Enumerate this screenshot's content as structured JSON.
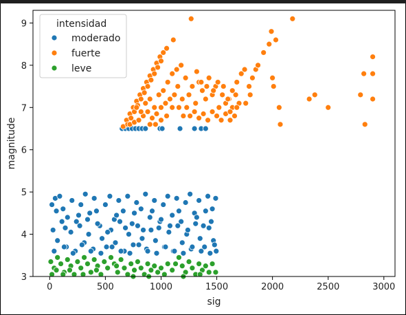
{
  "chart_data": {
    "type": "scatter",
    "xlabel": "sig",
    "ylabel": "magnitude",
    "xlim": [
      -150,
      3100
    ],
    "ylim": [
      3.0,
      9.3
    ],
    "xticks": [
      0,
      500,
      1000,
      1500,
      2000,
      2500,
      3000
    ],
    "yticks": [
      3,
      4,
      5,
      6,
      7,
      8,
      9
    ],
    "grid": false,
    "legend": {
      "title": "intensidad",
      "placement": "top-left",
      "entries": [
        "moderado",
        "fuerte",
        "leve"
      ]
    },
    "series": [
      {
        "name": "moderado",
        "color": "#1f77b4",
        "points": [
          [
            650,
            6.5
          ],
          [
            680,
            6.5
          ],
          [
            710,
            6.5
          ],
          [
            740,
            6.5
          ],
          [
            770,
            6.5
          ],
          [
            800,
            6.5
          ],
          [
            830,
            6.5
          ],
          [
            860,
            6.5
          ],
          [
            990,
            6.5
          ],
          [
            1010,
            6.5
          ],
          [
            1170,
            6.5
          ],
          [
            1300,
            6.5
          ],
          [
            1360,
            6.5
          ],
          [
            1400,
            6.5
          ],
          [
            20,
            4.7
          ],
          [
            50,
            4.85
          ],
          [
            90,
            4.9
          ],
          [
            120,
            4.6
          ],
          [
            160,
            4.4
          ],
          [
            200,
            4.8
          ],
          [
            240,
            4.3
          ],
          [
            280,
            4.7
          ],
          [
            320,
            4.95
          ],
          [
            360,
            4.5
          ],
          [
            400,
            4.85
          ],
          [
            450,
            4.2
          ],
          [
            500,
            4.7
          ],
          [
            540,
            4.9
          ],
          [
            580,
            4.35
          ],
          [
            620,
            4.8
          ],
          [
            660,
            4.55
          ],
          [
            700,
            4.9
          ],
          [
            740,
            4.25
          ],
          [
            780,
            4.75
          ],
          [
            820,
            4.6
          ],
          [
            860,
            4.95
          ],
          [
            900,
            4.4
          ],
          [
            940,
            4.8
          ],
          [
            980,
            4.15
          ],
          [
            1020,
            4.7
          ],
          [
            1060,
            4.9
          ],
          [
            1100,
            4.45
          ],
          [
            1140,
            4.85
          ],
          [
            1180,
            4.3
          ],
          [
            1220,
            4.75
          ],
          [
            1260,
            4.95
          ],
          [
            1300,
            4.5
          ],
          [
            1340,
            4.8
          ],
          [
            1380,
            4.2
          ],
          [
            1420,
            4.9
          ],
          [
            1460,
            4.6
          ],
          [
            1490,
            4.85
          ],
          [
            30,
            4.1
          ],
          [
            70,
            3.85
          ],
          [
            110,
            4.3
          ],
          [
            150,
            3.7
          ],
          [
            190,
            4.05
          ],
          [
            230,
            3.6
          ],
          [
            270,
            4.2
          ],
          [
            310,
            3.8
          ],
          [
            350,
            4.0
          ],
          [
            390,
            3.65
          ],
          [
            430,
            4.25
          ],
          [
            470,
            3.9
          ],
          [
            510,
            3.7
          ],
          [
            550,
            4.1
          ],
          [
            590,
            3.8
          ],
          [
            630,
            4.3
          ],
          [
            670,
            3.6
          ],
          [
            710,
            4.0
          ],
          [
            750,
            3.75
          ],
          [
            790,
            4.2
          ],
          [
            830,
            3.9
          ],
          [
            870,
            3.65
          ],
          [
            910,
            4.1
          ],
          [
            950,
            3.85
          ],
          [
            990,
            4.3
          ],
          [
            1030,
            3.7
          ],
          [
            1070,
            4.05
          ],
          [
            1110,
            3.6
          ],
          [
            1150,
            4.2
          ],
          [
            1190,
            3.8
          ],
          [
            1230,
            4.0
          ],
          [
            1270,
            3.65
          ],
          [
            1310,
            4.25
          ],
          [
            1350,
            3.9
          ],
          [
            1390,
            3.7
          ],
          [
            1430,
            4.15
          ],
          [
            1470,
            3.85
          ],
          [
            1495,
            3.6
          ],
          [
            40,
            3.6
          ],
          [
            130,
            3.7
          ],
          [
            210,
            3.55
          ],
          [
            290,
            3.75
          ],
          [
            370,
            3.6
          ],
          [
            460,
            3.55
          ],
          [
            560,
            3.7
          ],
          [
            640,
            3.6
          ],
          [
            720,
            3.55
          ],
          [
            800,
            3.75
          ],
          [
            880,
            3.6
          ],
          [
            960,
            3.55
          ],
          [
            1040,
            3.7
          ],
          [
            1120,
            3.6
          ],
          [
            1200,
            3.55
          ],
          [
            1280,
            3.7
          ],
          [
            1360,
            3.6
          ],
          [
            1440,
            3.55
          ],
          [
            1480,
            3.75
          ],
          [
            60,
            4.55
          ],
          [
            140,
            4.15
          ],
          [
            260,
            4.45
          ],
          [
            340,
            4.35
          ],
          [
            420,
            4.55
          ],
          [
            520,
            4.05
          ],
          [
            600,
            4.45
          ],
          [
            680,
            4.15
          ],
          [
            760,
            4.5
          ],
          [
            840,
            4.1
          ],
          [
            920,
            4.55
          ],
          [
            1000,
            4.35
          ],
          [
            1080,
            4.2
          ],
          [
            1160,
            4.55
          ],
          [
            1240,
            4.1
          ],
          [
            1320,
            4.4
          ],
          [
            1400,
            4.55
          ],
          [
            1450,
            4.3
          ]
        ]
      },
      {
        "name": "fuerte",
        "color": "#ff7f0e",
        "points": [
          [
            660,
            6.55
          ],
          [
            690,
            6.7
          ],
          [
            720,
            6.85
          ],
          [
            750,
            7.0
          ],
          [
            780,
            7.15
          ],
          [
            810,
            7.3
          ],
          [
            840,
            7.45
          ],
          [
            870,
            7.6
          ],
          [
            900,
            7.75
          ],
          [
            930,
            7.9
          ],
          [
            960,
            8.05
          ],
          [
            990,
            8.2
          ],
          [
            1020,
            8.3
          ],
          [
            1050,
            8.4
          ],
          [
            1110,
            8.6
          ],
          [
            1270,
            9.1
          ],
          [
            700,
            6.6
          ],
          [
            730,
            6.75
          ],
          [
            760,
            6.9
          ],
          [
            790,
            7.05
          ],
          [
            820,
            7.2
          ],
          [
            850,
            7.35
          ],
          [
            880,
            7.5
          ],
          [
            910,
            7.65
          ],
          [
            940,
            7.8
          ],
          [
            970,
            7.95
          ],
          [
            1000,
            8.1
          ],
          [
            720,
            6.6
          ],
          [
            760,
            6.65
          ],
          [
            800,
            6.7
          ],
          [
            840,
            6.8
          ],
          [
            880,
            6.9
          ],
          [
            920,
            6.75
          ],
          [
            960,
            6.85
          ],
          [
            1000,
            7.0
          ],
          [
            1040,
            7.1
          ],
          [
            1080,
            7.2
          ],
          [
            1120,
            7.3
          ],
          [
            780,
            7.0
          ],
          [
            820,
            6.9
          ],
          [
            860,
            7.1
          ],
          [
            900,
            7.2
          ],
          [
            940,
            7.0
          ],
          [
            980,
            7.3
          ],
          [
            1020,
            7.4
          ],
          [
            1060,
            7.6
          ],
          [
            1100,
            7.8
          ],
          [
            1140,
            7.9
          ],
          [
            1180,
            8.0
          ],
          [
            1220,
            7.7
          ],
          [
            1250,
            7.3
          ],
          [
            1280,
            7.5
          ],
          [
            1310,
            7.1
          ],
          [
            1340,
            7.6
          ],
          [
            1370,
            7.4
          ],
          [
            1400,
            7.2
          ],
          [
            1430,
            7.7
          ],
          [
            1460,
            7.3
          ],
          [
            1490,
            7.5
          ],
          [
            1520,
            7.0
          ],
          [
            1550,
            7.3
          ],
          [
            1580,
            7.1
          ],
          [
            1610,
            7.2
          ],
          [
            1640,
            7.0
          ],
          [
            1670,
            7.3
          ],
          [
            1700,
            7.1
          ],
          [
            1260,
            6.8
          ],
          [
            1300,
            6.9
          ],
          [
            1340,
            6.75
          ],
          [
            1380,
            6.85
          ],
          [
            1420,
            6.7
          ],
          [
            1460,
            6.9
          ],
          [
            1500,
            6.8
          ],
          [
            1540,
            6.7
          ],
          [
            1580,
            6.85
          ],
          [
            1620,
            6.7
          ],
          [
            1660,
            6.8
          ],
          [
            1150,
            7.5
          ],
          [
            1190,
            7.2
          ],
          [
            1230,
            7.0
          ],
          [
            1200,
            6.8
          ],
          [
            1160,
            7.0
          ],
          [
            1100,
            7.0
          ],
          [
            1050,
            6.8
          ],
          [
            1000,
            6.7
          ],
          [
            950,
            6.6
          ],
          [
            900,
            6.6
          ],
          [
            1320,
            7.85
          ],
          [
            1360,
            7.6
          ],
          [
            1410,
            7.5
          ],
          [
            1470,
            7.4
          ],
          [
            1510,
            7.6
          ],
          [
            1560,
            7.5
          ],
          [
            1600,
            7.2
          ],
          [
            1640,
            7.4
          ],
          [
            1680,
            7.6
          ],
          [
            1720,
            7.8
          ],
          [
            1750,
            7.9
          ],
          [
            1790,
            7.5
          ],
          [
            1820,
            7.7
          ],
          [
            1850,
            7.9
          ],
          [
            1870,
            8.0
          ],
          [
            1760,
            7.1
          ],
          [
            1800,
            7.3
          ],
          [
            1680,
            7.0
          ],
          [
            1620,
            6.9
          ],
          [
            1920,
            8.3
          ],
          [
            1970,
            8.5
          ],
          [
            1990,
            8.8
          ],
          [
            2030,
            8.6
          ],
          [
            2000,
            7.7
          ],
          [
            2010,
            7.5
          ],
          [
            2060,
            7.0
          ],
          [
            2070,
            6.6
          ],
          [
            2180,
            9.1
          ],
          [
            2330,
            7.2
          ],
          [
            2380,
            7.3
          ],
          [
            2500,
            7.0
          ],
          [
            2790,
            7.3
          ],
          [
            2820,
            7.8
          ],
          [
            2830,
            6.6
          ],
          [
            2900,
            8.2
          ],
          [
            2900,
            7.8
          ],
          [
            2900,
            7.2
          ]
        ]
      },
      {
        "name": "leve",
        "color": "#2ca02c",
        "points": [
          [
            10,
            3.35
          ],
          [
            40,
            3.2
          ],
          [
            70,
            3.45
          ],
          [
            100,
            3.3
          ],
          [
            130,
            3.1
          ],
          [
            160,
            3.4
          ],
          [
            190,
            3.25
          ],
          [
            220,
            3.05
          ],
          [
            250,
            3.35
          ],
          [
            280,
            3.2
          ],
          [
            310,
            3.45
          ],
          [
            340,
            3.3
          ],
          [
            370,
            3.1
          ],
          [
            400,
            3.4
          ],
          [
            430,
            3.25
          ],
          [
            460,
            3.05
          ],
          [
            490,
            3.35
          ],
          [
            520,
            3.2
          ],
          [
            550,
            3.45
          ],
          [
            580,
            3.3
          ],
          [
            610,
            3.1
          ],
          [
            640,
            3.4
          ],
          [
            670,
            3.2
          ],
          [
            700,
            3.05
          ],
          [
            730,
            3.3
          ],
          [
            760,
            3.15
          ],
          [
            790,
            3.35
          ],
          [
            820,
            3.2
          ],
          [
            850,
            3.05
          ],
          [
            880,
            3.3
          ],
          [
            910,
            3.15
          ],
          [
            940,
            3.25
          ],
          [
            970,
            3.1
          ],
          [
            1000,
            3.2
          ],
          [
            1030,
            3.05
          ],
          [
            1060,
            3.3
          ],
          [
            1100,
            3.15
          ],
          [
            1130,
            3.3
          ],
          [
            1160,
            3.45
          ],
          [
            1190,
            3.25
          ],
          [
            1220,
            3.1
          ],
          [
            1250,
            3.35
          ],
          [
            1280,
            3.2
          ],
          [
            1310,
            3.05
          ],
          [
            1340,
            3.3
          ],
          [
            1370,
            3.15
          ],
          [
            1400,
            3.25
          ],
          [
            1430,
            3.1
          ],
          [
            1460,
            3.3
          ],
          [
            1490,
            3.1
          ],
          [
            20,
            3.05
          ],
          [
            60,
            3.15
          ],
          [
            120,
            3.05
          ],
          [
            180,
            3.15
          ],
          [
            300,
            3.05
          ],
          [
            420,
            3.15
          ],
          [
            600,
            3.25
          ],
          [
            750,
            3.0
          ],
          [
            890,
            3.0
          ],
          [
            1200,
            3.0
          ],
          [
            1350,
            3.05
          ]
        ]
      }
    ]
  }
}
